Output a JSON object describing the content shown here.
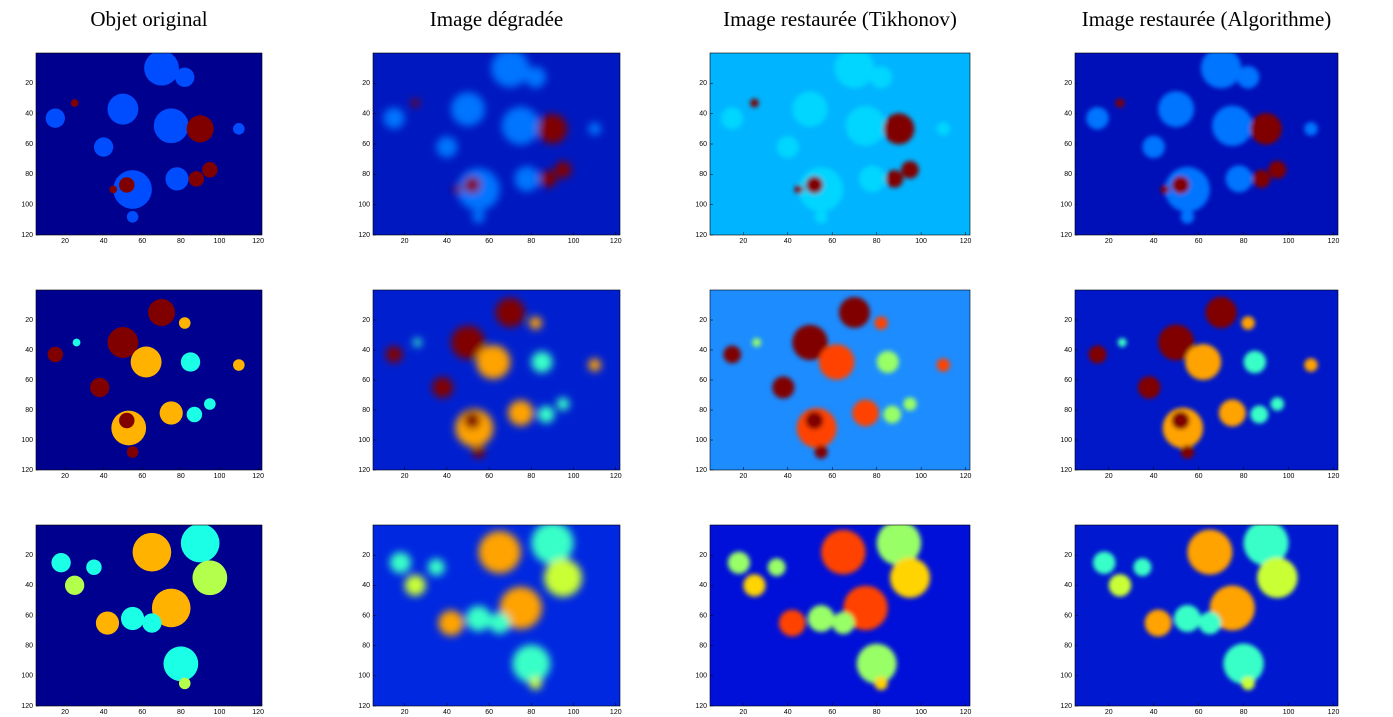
{
  "chart_data": [
    {
      "type": "image",
      "title": "Objet original",
      "xlim": [
        5,
        122
      ],
      "ylim": [
        0,
        120
      ],
      "xticks": [
        20,
        40,
        60,
        80,
        100,
        120
      ],
      "yticks": [
        20,
        40,
        60,
        80,
        100,
        120
      ],
      "color": "#00008f"
    },
    {
      "type": "image",
      "title": "Image dégradée",
      "xlim": [
        5,
        122
      ],
      "ylim": [
        0,
        120
      ],
      "xticks": [
        20,
        40,
        60,
        80,
        100,
        120
      ],
      "yticks": [
        20,
        40,
        60,
        80,
        100,
        120
      ],
      "color": "#0018c0"
    },
    {
      "type": "image",
      "title": "Image restaurée (Tikhonov)",
      "xlim": [
        5,
        122
      ],
      "ylim": [
        0,
        120
      ],
      "xticks": [
        20,
        40,
        60,
        80,
        100,
        120
      ],
      "yticks": [
        20,
        40,
        60,
        80,
        100,
        120
      ],
      "color": "#00b4ff"
    },
    {
      "type": "image",
      "title": "Image restaurée (Algorithme)",
      "xlim": [
        5,
        122
      ],
      "ylim": [
        0,
        120
      ],
      "xticks": [
        20,
        40,
        60,
        80,
        100,
        120
      ],
      "yticks": [
        20,
        40,
        60,
        80,
        100,
        120
      ],
      "color": "#0010b8"
    },
    {
      "type": "image",
      "xlim": [
        5,
        122
      ],
      "ylim": [
        0,
        120
      ],
      "xticks": [
        20,
        40,
        60,
        80,
        100,
        120
      ],
      "yticks": [
        20,
        40,
        60,
        80,
        100,
        120
      ],
      "color": "#00008f"
    },
    {
      "type": "image",
      "xlim": [
        5,
        122
      ],
      "ylim": [
        0,
        120
      ],
      "xticks": [
        20,
        40,
        60,
        80,
        100,
        120
      ],
      "yticks": [
        20,
        40,
        60,
        80,
        100,
        120
      ],
      "color": "#0020d0"
    },
    {
      "type": "image",
      "xlim": [
        5,
        122
      ],
      "ylim": [
        0,
        120
      ],
      "xticks": [
        20,
        40,
        60,
        80,
        100,
        120
      ],
      "yticks": [
        20,
        40,
        60,
        80,
        100,
        120
      ],
      "color": "#1c8cff"
    },
    {
      "type": "image",
      "xlim": [
        5,
        122
      ],
      "ylim": [
        0,
        120
      ],
      "xticks": [
        20,
        40,
        60,
        80,
        100,
        120
      ],
      "yticks": [
        20,
        40,
        60,
        80,
        100,
        120
      ],
      "color": "#0018c8"
    },
    {
      "type": "image",
      "xlim": [
        5,
        122
      ],
      "ylim": [
        0,
        120
      ],
      "xticks": [
        20,
        40,
        60,
        80,
        100,
        120
      ],
      "yticks": [
        20,
        40,
        60,
        80,
        100,
        120
      ],
      "color": "#00008f"
    },
    {
      "type": "image",
      "xlim": [
        5,
        122
      ],
      "ylim": [
        0,
        120
      ],
      "xticks": [
        20,
        40,
        60,
        80,
        100,
        120
      ],
      "yticks": [
        20,
        40,
        60,
        80,
        100,
        120
      ],
      "color": "#0028e0"
    },
    {
      "type": "image",
      "xlim": [
        5,
        122
      ],
      "ylim": [
        0,
        120
      ],
      "xticks": [
        20,
        40,
        60,
        80,
        100,
        120
      ],
      "yticks": [
        20,
        40,
        60,
        80,
        100,
        120
      ],
      "color": "#0010d8"
    },
    {
      "type": "image",
      "xlim": [
        5,
        122
      ],
      "ylim": [
        0,
        120
      ],
      "xticks": [
        20,
        40,
        60,
        80,
        100,
        120
      ],
      "yticks": [
        20,
        40,
        60,
        80,
        100,
        120
      ],
      "color": "#0018d0"
    }
  ]
}
